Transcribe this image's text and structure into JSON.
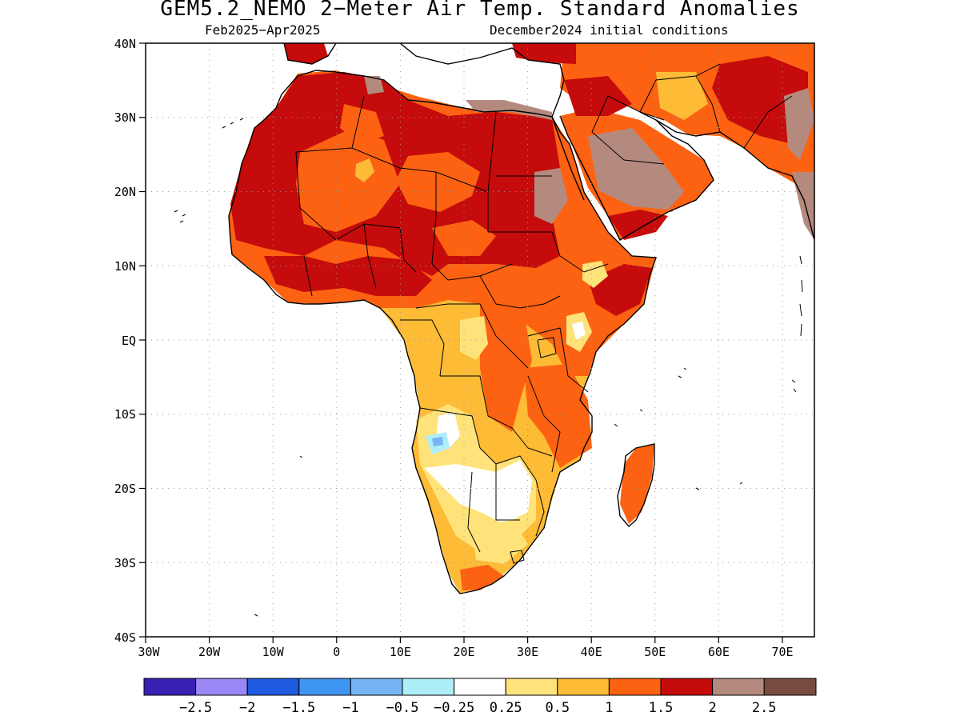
{
  "title": "GEM5.2_NEMO 2−Meter Air Temp. Standard Anomalies",
  "subtitle_left": "Feb2025−Apr2025",
  "subtitle_right": "December2024 initial conditions",
  "map": {
    "lat_range": [
      -40,
      40
    ],
    "lon_range": [
      -30,
      75
    ],
    "lat_ticks": [
      "40N",
      "30N",
      "20N",
      "10N",
      "EQ",
      "10S",
      "20S",
      "30S",
      "40S"
    ],
    "lon_ticks": [
      "30W",
      "20W",
      "10W",
      "0",
      "10E",
      "20E",
      "30E",
      "40E",
      "50E",
      "60E",
      "70E"
    ],
    "grid": "dotted"
  },
  "colorbar": {
    "colors": [
      "#3a1fb4",
      "#9b86f5",
      "#1f5be0",
      "#3f95f2",
      "#75b5f5",
      "#aeeef8",
      "#ffffff",
      "#ffe37a",
      "#fdbb36",
      "#fc6212",
      "#c50b0b",
      "#b58a7e",
      "#774c3f"
    ],
    "labels": [
      "−2.5",
      "−2",
      "−1.5",
      "−1",
      "−0.5",
      "−0.25",
      "0.25",
      "0.5",
      "1",
      "1.5",
      "2",
      "2.5"
    ]
  }
}
